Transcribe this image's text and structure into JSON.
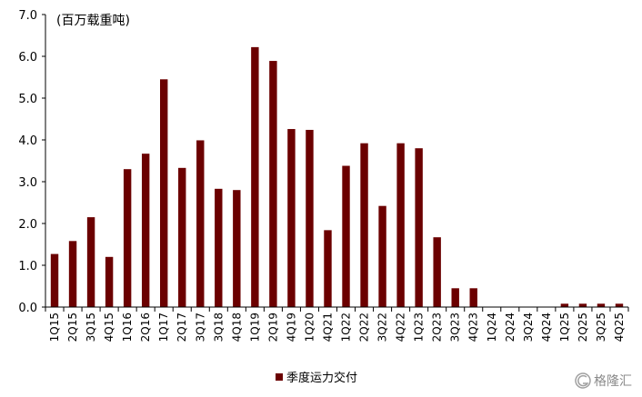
{
  "chart_data": {
    "type": "bar",
    "unit_label": "(百万载重吨)",
    "categories": [
      "1Q15",
      "2Q15",
      "3Q15",
      "4Q15",
      "1Q16",
      "2Q16",
      "1Q17",
      "2Q17",
      "3Q17",
      "3Q18",
      "4Q18",
      "1Q19",
      "2Q19",
      "4Q19",
      "1Q20",
      "4Q21",
      "1Q22",
      "2Q22",
      "3Q22",
      "4Q22",
      "1Q23",
      "2Q23",
      "3Q23",
      "4Q23",
      "1Q24",
      "2Q24",
      "3Q24",
      "4Q24",
      "1Q25",
      "2Q25",
      "3Q25",
      "4Q25"
    ],
    "series": [
      {
        "name": "季度运力交付",
        "color": "#6b0000",
        "values": [
          1.27,
          1.58,
          2.15,
          1.2,
          3.3,
          3.67,
          5.45,
          3.33,
          3.99,
          2.83,
          2.8,
          6.22,
          5.89,
          4.26,
          4.24,
          1.84,
          3.38,
          3.92,
          2.42,
          3.92,
          3.8,
          1.67,
          0.45,
          0.45,
          0,
          0,
          0,
          0,
          0.08,
          0.08,
          0.08,
          0.08
        ]
      }
    ],
    "ylim": [
      0,
      7
    ],
    "yticks": [
      "0.0",
      "1.0",
      "2.0",
      "3.0",
      "4.0",
      "5.0",
      "6.0",
      "7.0"
    ],
    "legend_position": "bottom"
  },
  "watermark": {
    "text": "格隆汇"
  }
}
